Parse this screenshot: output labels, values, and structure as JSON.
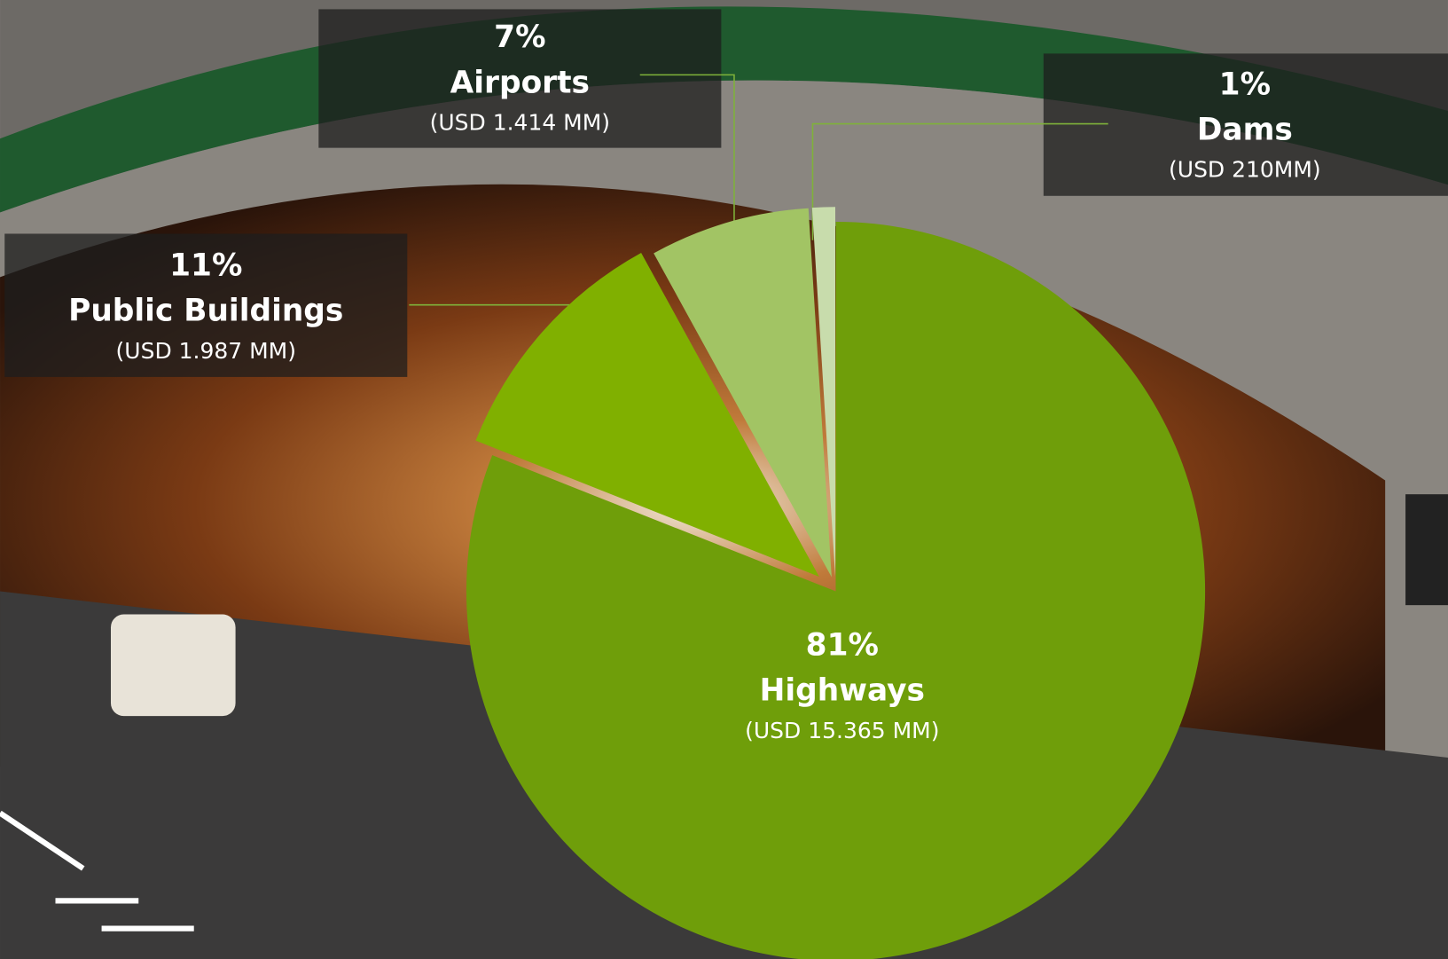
{
  "chart_data": {
    "type": "pie",
    "categories": [
      "Highways",
      "Public Buildings",
      "Airports",
      "Dams"
    ],
    "values": [
      81,
      11,
      7,
      1
    ],
    "value_labels": [
      "81%",
      "11%",
      "7%",
      "1%"
    ],
    "amount_labels": [
      "(USD 15.365 MM)",
      "(USD 1.987 MM)",
      "(USD 1.414 MM)",
      "(USD 210MM)"
    ],
    "colors": [
      "#6f9e0a",
      "#80b000",
      "#a2c464",
      "#c8dcac"
    ]
  }
}
